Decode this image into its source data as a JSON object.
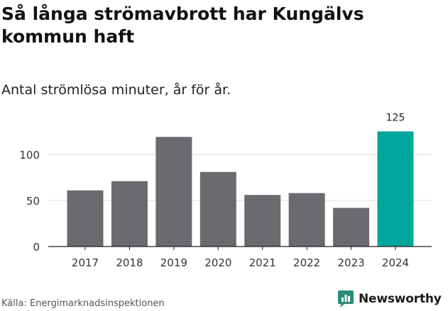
{
  "header": {
    "title": "Så långa strömavbrott har Kungälvs kommun haft",
    "subtitle": "Antal strömlösa minuter, år för år."
  },
  "footer": {
    "source": "Källa: Energimarknadsinspektionen",
    "brand": "Newsworthy"
  },
  "colors": {
    "bar_default": "#6b6a6f",
    "bar_highlight": "#00a59b",
    "grid": "#dddddd",
    "axis": "#222222",
    "brand": "#2a8c7e"
  },
  "chart_data": {
    "type": "bar",
    "title": "Så långa strömavbrott har Kungälvs kommun haft",
    "subtitle": "Antal strömlösa minuter, år för år.",
    "categories": [
      "2017",
      "2018",
      "2019",
      "2020",
      "2021",
      "2022",
      "2023",
      "2024"
    ],
    "values": [
      61,
      71,
      119,
      81,
      56,
      58,
      42,
      125
    ],
    "highlight": "2024",
    "data_labels": {
      "2024": "125"
    },
    "yticks": [
      0,
      50,
      100
    ],
    "ylim": [
      0,
      130
    ],
    "grid": true,
    "xlabel": "",
    "ylabel": ""
  }
}
